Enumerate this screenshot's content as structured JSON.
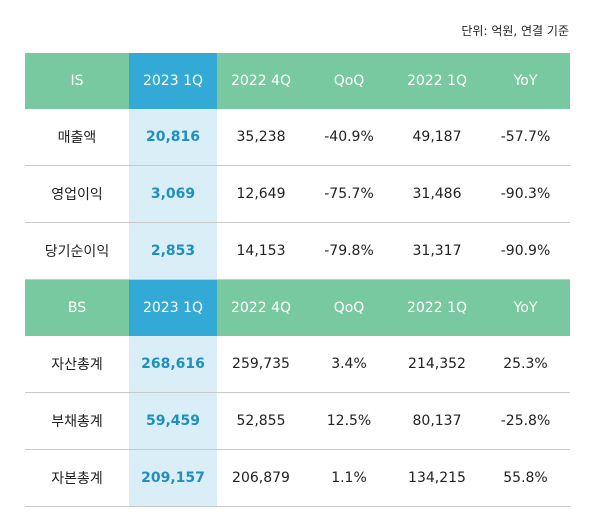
{
  "unit_note": "단위: 억원, 연결 기준",
  "sections": [
    {
      "headers": [
        "IS",
        "2023 1Q",
        "2022 4Q",
        "QoQ",
        "2022 1Q",
        "YoY"
      ],
      "rows": [
        [
          "매출액",
          "20,816",
          "35,238",
          "-40.9%",
          "49,187",
          "-57.7%"
        ],
        [
          "영업이익",
          "3,069",
          "12,649",
          "-75.7%",
          "31,486",
          "-90.3%"
        ],
        [
          "당기순이익",
          "2,853",
          "14,153",
          "-79.8%",
          "31,317",
          "-90.9%"
        ]
      ]
    },
    {
      "headers": [
        "BS",
        "2023 1Q",
        "2022 4Q",
        "QoQ",
        "2022 1Q",
        "YoY"
      ],
      "rows": [
        [
          "자산총계",
          "268,616",
          "259,735",
          "3.4%",
          "214,352",
          "25.3%"
        ],
        [
          "부채총계",
          "59,459",
          "52,855",
          "12.5%",
          "80,137",
          "-25.8%"
        ],
        [
          "자본총계",
          "209,157",
          "206,879",
          "1.1%",
          "134,215",
          "55.8%"
        ]
      ]
    }
  ],
  "colors": {
    "header_green": "#78c9a0",
    "header_highlight_blue": "#33aad6",
    "highlight_column_bg": "#d9eef6",
    "highlight_text": "#1f8fbf",
    "row_divider": "#c9c9c9"
  }
}
